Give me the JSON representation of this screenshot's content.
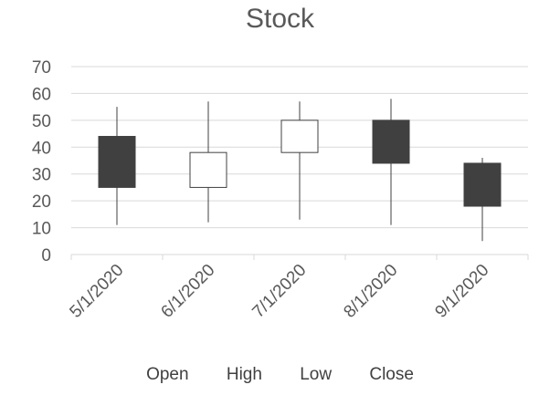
{
  "chart_data": {
    "type": "candlestick",
    "title": "Stock",
    "categories": [
      "5/1/2020",
      "6/1/2020",
      "7/1/2020",
      "8/1/2020",
      "9/1/2020"
    ],
    "series": [
      {
        "name": "Open",
        "values": [
          44,
          25,
          38,
          50,
          34
        ]
      },
      {
        "name": "High",
        "values": [
          55,
          57,
          57,
          58,
          36
        ]
      },
      {
        "name": "Low",
        "values": [
          11,
          12,
          13,
          11,
          5
        ]
      },
      {
        "name": "Close",
        "values": [
          25,
          38,
          50,
          34,
          18
        ]
      }
    ],
    "yticks": [
      "0",
      "10",
      "20",
      "30",
      "40",
      "50",
      "60",
      "70"
    ],
    "ylim": [
      0,
      70
    ],
    "grid": true,
    "legend": "bottom",
    "colors": {
      "up_fill": "#ffffff",
      "down_fill": "#404040",
      "candle_stroke": "#404040",
      "grid": "#d9d9d9",
      "text": "#595959"
    }
  },
  "legend_labels": [
    "Open",
    "High",
    "Low",
    "Close"
  ]
}
